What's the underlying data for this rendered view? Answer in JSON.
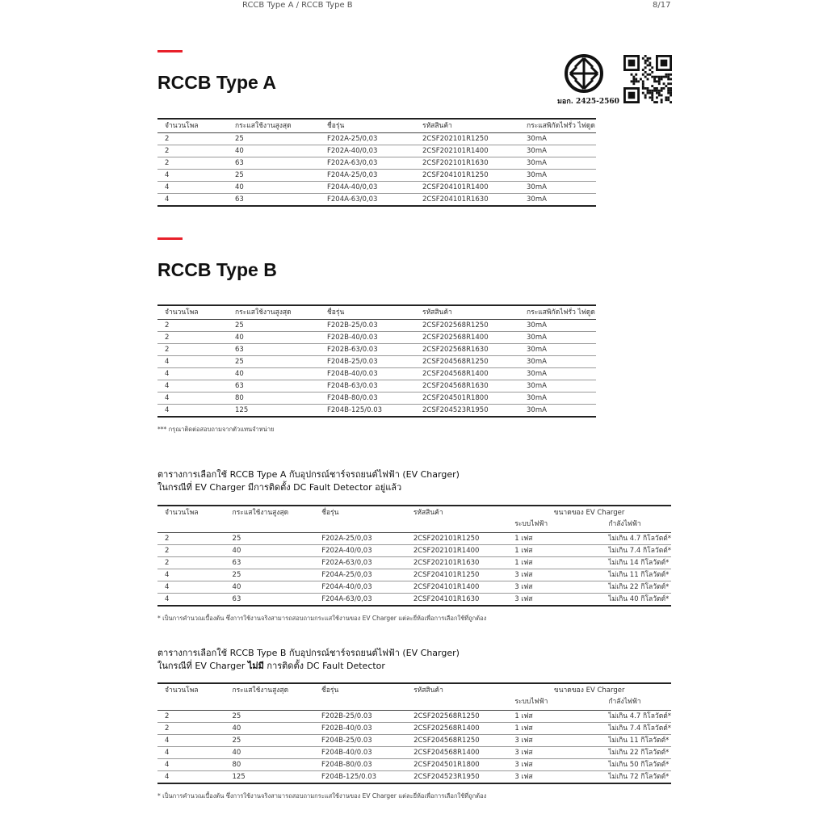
{
  "header": {
    "title": "RCCB Type A / RCCB Type B",
    "page": "8/17"
  },
  "certification": {
    "label": "มอก. 2425-2560"
  },
  "type_a": {
    "title": "RCCB Type  A",
    "columns": [
      "จำนวนโพล",
      "กระแสใช้งานสูงสุด",
      "ชื่อรุ่น",
      "รหัสสินค้า",
      "กระแสพิกัดไฟรั่ว ไฟดูด"
    ],
    "rows": [
      [
        "2",
        "25",
        "F202A-25/0,03",
        "2CSF202101R1250",
        "30mA"
      ],
      [
        "2",
        "40",
        "F202A-40/0,03",
        "2CSF202101R1400",
        "30mA"
      ],
      [
        "2",
        "63",
        "F202A-63/0,03",
        "2CSF202101R1630",
        "30mA"
      ],
      [
        "4",
        "25",
        "F204A-25/0,03",
        "2CSF204101R1250",
        "30mA"
      ],
      [
        "4",
        "40",
        "F204A-40/0,03",
        "2CSF204101R1400",
        "30mA"
      ],
      [
        "4",
        "63",
        "F204A-63/0,03",
        "2CSF204101R1630",
        "30mA"
      ]
    ]
  },
  "type_b": {
    "title": "RCCB Type  B",
    "columns": [
      "จำนวนโพล",
      "กระแสใช้งานสูงสุด",
      "ชื่อรุ่น",
      "รหัสสินค้า",
      "กระแสพิกัดไฟรั่ว ไฟดูด"
    ],
    "rows": [
      [
        "2",
        "25",
        "F202B-25/0.03",
        "2CSF202568R1250",
        "30mA"
      ],
      [
        "2",
        "40",
        "F202B-40/0.03",
        "2CSF202568R1400",
        "30mA"
      ],
      [
        "2",
        "63",
        "F202B-63/0.03",
        "2CSF202568R1630",
        "30mA"
      ],
      [
        "4",
        "25",
        "F204B-25/0.03",
        "2CSF204568R1250",
        "30mA"
      ],
      [
        "4",
        "40",
        "F204B-40/0.03",
        "2CSF204568R1400",
        "30mA"
      ],
      [
        "4",
        "63",
        "F204B-63/0.03",
        "2CSF204568R1630",
        "30mA"
      ],
      [
        "4",
        "80",
        "F204B-80/0.03",
        "2CSF204501R1800",
        "30mA"
      ],
      [
        "4",
        "125",
        "F204B-125/0.03",
        "2CSF204523R1950",
        "30mA"
      ]
    ],
    "note": "*** กรุณาติดต่อสอบถามจากตัวแทนจำหน่าย"
  },
  "ev_a": {
    "title_line1": "ตารางการเลือกใช้ RCCB Type A กับอุปกรณ์ชาร์จรถยนต์ไฟฟ้า (EV Charger)",
    "title_line2": "ในกรณีที่ EV Charger มีการติดตั้ง DC Fault Detector อยู่แล้ว",
    "columns": [
      "จำนวนโพล",
      "กระแสใช้งานสูงสุด",
      "ชื่อรุ่น",
      "รหัสสินค้า"
    ],
    "group_header": "ขนาดของ EV Charger",
    "sub_columns": [
      "ระบบไฟฟ้า",
      "กำลังไฟฟ้า"
    ],
    "rows": [
      [
        "2",
        "25",
        "F202A-25/0,03",
        "2CSF202101R1250",
        "1 เฟส",
        "ไม่เกิน 4.7 กิโลวัตต์*"
      ],
      [
        "2",
        "40",
        "F202A-40/0,03",
        "2CSF202101R1400",
        "1 เฟส",
        "ไม่เกิน 7.4 กิโลวัตต์*"
      ],
      [
        "2",
        "63",
        "F202A-63/0,03",
        "2CSF202101R1630",
        "1 เฟส",
        "ไม่เกิน 14 กิโลวัตต์*"
      ],
      [
        "4",
        "25",
        "F204A-25/0,03",
        "2CSF204101R1250",
        "3 เฟส",
        "ไม่เกิน 11 กิโลวัตต์*"
      ],
      [
        "4",
        "40",
        "F204A-40/0,03",
        "2CSF204101R1400",
        "3 เฟส",
        "ไม่เกิน 22 กิโลวัตต์*"
      ],
      [
        "4",
        "63",
        "F204A-63/0,03",
        "2CSF204101R1630",
        "3 เฟส",
        "ไม่เกิน 40 กิโลวัตต์*"
      ]
    ],
    "note": "* เป็นการคำนวณเบื้องต้น ซึ่งการใช้งานจริงสามารถสอบถามกระแสใช้งานของ EV Charger แต่ละยี่ห้อเพื่อการเลือกใช้ที่ถูกต้อง"
  },
  "ev_b": {
    "title_line1": "ตารางการเลือกใช้ RCCB Type B กับอุปกรณ์ชาร์จรถยนต์ไฟฟ้า (EV Charger)",
    "title_line2_a": "ในกรณีที่ EV Charger ",
    "title_line2_bold": "ไม่มี",
    "title_line2_b": " การติดตั้ง DC Fault Detector",
    "columns": [
      "จำนวนโพล",
      "กระแสใช้งานสูงสุด",
      "ชื่อรุ่น",
      "รหัสสินค้า"
    ],
    "group_header": "ขนาดของ EV Charger",
    "sub_columns": [
      "ระบบไฟฟ้า",
      "กำลังไฟฟ้า"
    ],
    "rows": [
      [
        "2",
        "25",
        "F202B-25/0.03",
        "2CSF202568R1250",
        "1 เฟส",
        "ไม่เกิน 4.7 กิโลวัตต์*"
      ],
      [
        "2",
        "40",
        "F202B-40/0.03",
        "2CSF202568R1400",
        "1 เฟส",
        "ไม่เกิน 7.4 กิโลวัตต์*"
      ],
      [
        "4",
        "25",
        "F204B-25/0.03",
        "2CSF204568R1250",
        "3 เฟส",
        "ไม่เกิน 11 กิโลวัตต์*"
      ],
      [
        "4",
        "40",
        "F204B-40/0.03",
        "2CSF204568R1400",
        "3 เฟส",
        "ไม่เกิน 22 กิโลวัตต์*"
      ],
      [
        "4",
        "80",
        "F204B-80/0.03",
        "2CSF204501R1800",
        "3 เฟส",
        "ไม่เกิน 50 กิโลวัตต์*"
      ],
      [
        "4",
        "125",
        "F204B-125/0.03",
        "2CSF204523R1950",
        "3 เฟส",
        "ไม่เกิน 72 กิโลวัตต์*"
      ]
    ],
    "note": "* เป็นการคำนวณเบื้องต้น ซึ่งการใช้งานจริงสามารถสอบถามกระแสใช้งานของ EV Charger แต่ละยี่ห้อเพื่อการเลือกใช้ที่ถูกต้อง"
  },
  "colors": {
    "accent": "#e8202a",
    "text": "#222222"
  }
}
